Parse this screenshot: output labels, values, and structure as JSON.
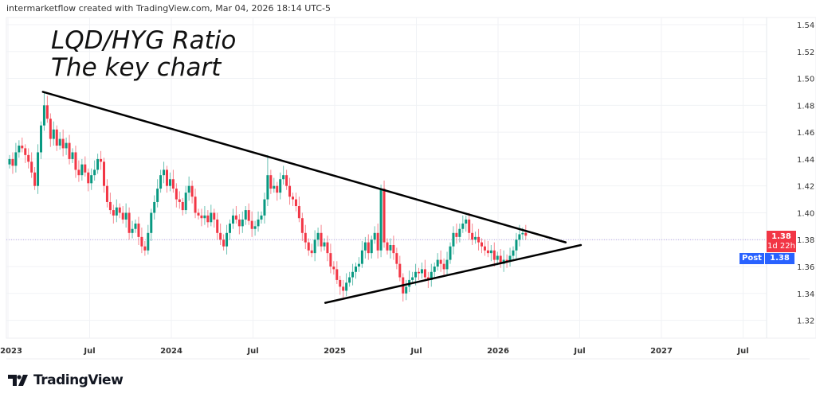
{
  "header": {
    "text": "intermarketflow created with TradingView.com, Mar 04, 2026 18:14 UTC-5"
  },
  "title": {
    "line1": "LQD/HYG Ratio",
    "line2": "The key chart"
  },
  "logo": {
    "text": "TradingView",
    "icon": "tradingview-logo-icon"
  },
  "price_tag": {
    "price": "1.38",
    "countdown": "1d 22h",
    "color": "#f23645"
  },
  "post_tag": {
    "label": "Post",
    "price": "1.38",
    "color": "#2962ff"
  },
  "chart_data": {
    "type": "candlestick",
    "interval": "1W",
    "start": "2023-01-02",
    "up_color": "#089981",
    "down_color": "#f23645",
    "closes": [
      1.44,
      1.435,
      1.445,
      1.45,
      1.448,
      1.443,
      1.438,
      1.43,
      1.42,
      1.445,
      1.465,
      1.48,
      1.47,
      1.455,
      1.462,
      1.45,
      1.455,
      1.448,
      1.452,
      1.44,
      1.445,
      1.432,
      1.428,
      1.436,
      1.43,
      1.422,
      1.428,
      1.432,
      1.44,
      1.438,
      1.42,
      1.408,
      1.402,
      1.398,
      1.404,
      1.4,
      1.395,
      1.4,
      1.385,
      1.388,
      1.392,
      1.382,
      1.375,
      1.372,
      1.385,
      1.4,
      1.408,
      1.418,
      1.428,
      1.432,
      1.42,
      1.425,
      1.418,
      1.41,
      1.408,
      1.402,
      1.415,
      1.42,
      1.412,
      1.4,
      1.398,
      1.396,
      1.398,
      1.393,
      1.4,
      1.395,
      1.385,
      1.38,
      1.375,
      1.385,
      1.392,
      1.398,
      1.395,
      1.39,
      1.395,
      1.402,
      1.394,
      1.388,
      1.39,
      1.395,
      1.398,
      1.41,
      1.428,
      1.418,
      1.42,
      1.415,
      1.425,
      1.428,
      1.42,
      1.412,
      1.41,
      1.405,
      1.396,
      1.385,
      1.378,
      1.372,
      1.37,
      1.38,
      1.385,
      1.375,
      1.378,
      1.37,
      1.36,
      1.358,
      1.35,
      1.345,
      1.342,
      1.348,
      1.352,
      1.356,
      1.36,
      1.362,
      1.372,
      1.378,
      1.37,
      1.38,
      1.385,
      1.372,
      1.418,
      1.378,
      1.372,
      1.376,
      1.37,
      1.362,
      1.352,
      1.34,
      1.345,
      1.35,
      1.352,
      1.356,
      1.355,
      1.358,
      1.352,
      1.35,
      1.356,
      1.36,
      1.365,
      1.362,
      1.358,
      1.365,
      1.375,
      1.385,
      1.382,
      1.388,
      1.392,
      1.395,
      1.385,
      1.38,
      1.382,
      1.378,
      1.375,
      1.372,
      1.37,
      1.372,
      1.365,
      1.368,
      1.362,
      1.365,
      1.364,
      1.368,
      1.372,
      1.38,
      1.384,
      1.385,
      1.383
    ],
    "notable_highs": [
      {
        "week": 11,
        "high": 1.49
      },
      {
        "week": 82,
        "high": 1.443
      },
      {
        "week": 118,
        "high": 1.421
      }
    ],
    "trendlines": [
      {
        "from": {
          "date": "2023-03-20",
          "price": 1.49
        },
        "to": {
          "date": "2026-06-01",
          "price": 1.378
        }
      },
      {
        "from": {
          "date": "2024-12-10",
          "price": 1.333
        },
        "to": {
          "date": "2026-07-05",
          "price": 1.376
        }
      }
    ],
    "last_price_line": 1.38,
    "y_ticks": [
      "1.54",
      "1.52",
      "1.50",
      "1.48",
      "1.46",
      "1.44",
      "1.42",
      "1.40",
      "1.38",
      "1.36",
      "1.34",
      "1.32"
    ],
    "ylim": [
      1.3,
      1.55
    ],
    "x_ticks": [
      "2023",
      "Jul",
      "2024",
      "Jul",
      "2025",
      "Jul",
      "2026",
      "Jul",
      "2027",
      "Jul"
    ],
    "xlim": [
      "2023-01-01",
      "2027-09-01"
    ],
    "grid": true
  }
}
